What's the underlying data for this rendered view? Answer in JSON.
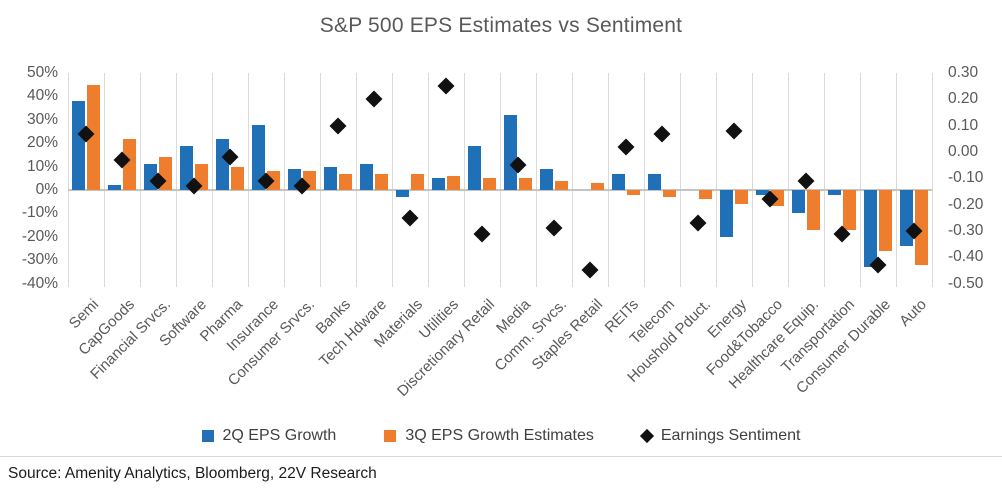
{
  "title": "S&P 500 EPS Estimates vs Sentiment",
  "source": "Source: Amenity Analytics, Bloomberg, 22V Research",
  "legend": {
    "items": [
      {
        "label": "2Q EPS Growth",
        "marker": "blue-square"
      },
      {
        "label": "3Q EPS Growth Estimates",
        "marker": "orange-square"
      },
      {
        "label": "Earnings Sentiment",
        "marker": "black-diamond"
      }
    ]
  },
  "colors": {
    "blue": "#1F70B7",
    "orange": "#EE7D2E",
    "diamond": "#111111",
    "grid": "#D9D9D9",
    "zero_line": "#C4C4C4",
    "axis_text": "#595959",
    "title_text": "#595959",
    "legend_text": "#404040",
    "source_text": "#1C1C1C"
  },
  "chart_data": {
    "type": "bar",
    "subtype": "combo-bar-scatter-dual-axis",
    "title": "S&P 500 EPS Estimates vs Sentiment",
    "categories": [
      "Semi",
      "CapGoods",
      "Financial Srvcs.",
      "Software",
      "Pharma",
      "Insurance",
      "Consumer Srvcs.",
      "Banks",
      "Tech Hdware",
      "Materials",
      "Utilities",
      "Discretionary Retail",
      "Media",
      "Comm. Srvcs.",
      "Staples Retail",
      "REITs",
      "Telecom",
      "Houshold Pduct.",
      "Energy",
      "Food&Tobacco",
      "Healthcare Equip.",
      "Transportation",
      "Consumer Durable",
      "Auto"
    ],
    "series": [
      {
        "name": "2Q EPS Growth",
        "type": "bar",
        "axis": "left",
        "color": "#1F70B7",
        "values": [
          38,
          2,
          11,
          19,
          22,
          28,
          9,
          10,
          11,
          -3,
          5,
          19,
          32,
          9,
          0,
          7,
          7,
          0,
          -20,
          -2,
          -10,
          -2,
          -33,
          -24
        ]
      },
      {
        "name": "3Q EPS Growth Estimates",
        "type": "bar",
        "axis": "left",
        "color": "#EE7D2E",
        "values": [
          45,
          22,
          14,
          11,
          10,
          8,
          8,
          7,
          7,
          7,
          6,
          5,
          5,
          4,
          3,
          -2,
          -3,
          -4,
          -6,
          -7,
          -17,
          -17,
          -26,
          -32
        ]
      },
      {
        "name": "Earnings Sentiment",
        "type": "scatter",
        "axis": "right",
        "color": "#111111",
        "values": [
          0.07,
          -0.03,
          -0.11,
          -0.13,
          -0.02,
          -0.11,
          -0.13,
          0.1,
          0.2,
          -0.25,
          0.25,
          -0.31,
          -0.05,
          -0.29,
          -0.45,
          0.02,
          0.07,
          -0.27,
          0.08,
          -0.18,
          -0.11,
          -0.31,
          -0.43,
          -0.3
        ]
      }
    ],
    "left_axis": {
      "ticks": [
        "50%",
        "40%",
        "30%",
        "20%",
        "10%",
        "0%",
        "-10%",
        "-20%",
        "-30%",
        "-40%"
      ],
      "max": 50,
      "min": -40,
      "unit": "%"
    },
    "right_axis": {
      "ticks": [
        "0.30",
        "0.20",
        "0.10",
        "0.00",
        "-0.10",
        "-0.20",
        "-0.30",
        "-0.40",
        "-0.50"
      ],
      "max": 0.3,
      "min": -0.5
    },
    "grid": "vertical-category-gridlines",
    "legend_position": "bottom"
  }
}
